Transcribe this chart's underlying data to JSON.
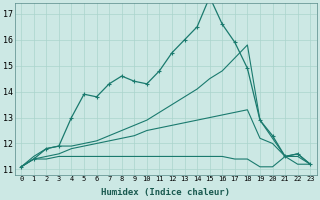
{
  "xlabel": "Humidex (Indice chaleur)",
  "background_color": "#cce8e4",
  "grid_color": "#aad4cc",
  "line_color": "#1a7a6e",
  "xlim": [
    -0.5,
    23.5
  ],
  "ylim": [
    10.8,
    17.4
  ],
  "yticks": [
    11,
    12,
    13,
    14,
    15,
    16,
    17
  ],
  "xticks": [
    0,
    1,
    2,
    3,
    4,
    5,
    6,
    7,
    8,
    9,
    10,
    11,
    12,
    13,
    14,
    15,
    16,
    17,
    18,
    19,
    20,
    21,
    22,
    23
  ],
  "series": [
    {
      "x": [
        0,
        1,
        2,
        3,
        4,
        5,
        6,
        7,
        8,
        9,
        10,
        11,
        12,
        13,
        14,
        15,
        16,
        17,
        18,
        19,
        20,
        21,
        22,
        23
      ],
      "y": [
        11.1,
        11.4,
        11.4,
        11.5,
        11.5,
        11.5,
        11.5,
        11.5,
        11.5,
        11.5,
        11.5,
        11.5,
        11.5,
        11.5,
        11.5,
        11.5,
        11.5,
        11.4,
        11.4,
        11.1,
        11.1,
        11.5,
        11.2,
        11.2
      ],
      "markers": false
    },
    {
      "x": [
        0,
        1,
        2,
        3,
        4,
        5,
        6,
        7,
        8,
        9,
        10,
        11,
        12,
        13,
        14,
        15,
        16,
        17,
        18,
        19,
        20,
        21,
        22,
        23
      ],
      "y": [
        11.1,
        11.4,
        11.5,
        11.6,
        11.8,
        11.9,
        12.0,
        12.1,
        12.2,
        12.3,
        12.5,
        12.6,
        12.7,
        12.8,
        12.9,
        13.0,
        13.1,
        13.2,
        13.3,
        12.2,
        12.0,
        11.5,
        11.5,
        11.2
      ],
      "markers": false
    },
    {
      "x": [
        0,
        1,
        2,
        3,
        4,
        5,
        6,
        7,
        8,
        9,
        10,
        11,
        12,
        13,
        14,
        15,
        16,
        17,
        18,
        19,
        20,
        21,
        22,
        23
      ],
      "y": [
        11.1,
        11.4,
        11.8,
        11.9,
        13.0,
        13.9,
        13.8,
        14.3,
        14.6,
        14.4,
        14.3,
        14.8,
        15.5,
        16.0,
        16.5,
        17.65,
        16.6,
        15.9,
        14.9,
        12.9,
        12.3,
        11.5,
        11.6,
        11.2
      ],
      "markers": true
    },
    {
      "x": [
        0,
        1,
        2,
        3,
        4,
        5,
        6,
        7,
        8,
        9,
        10,
        11,
        12,
        13,
        14,
        15,
        16,
        17,
        18,
        19,
        20,
        21,
        22,
        23
      ],
      "y": [
        11.1,
        11.5,
        11.8,
        11.9,
        11.9,
        12.0,
        12.1,
        12.3,
        12.5,
        12.7,
        12.9,
        13.2,
        13.5,
        13.8,
        14.1,
        14.5,
        14.8,
        15.3,
        15.8,
        12.9,
        12.2,
        11.5,
        11.6,
        11.2
      ],
      "markers": false
    }
  ]
}
